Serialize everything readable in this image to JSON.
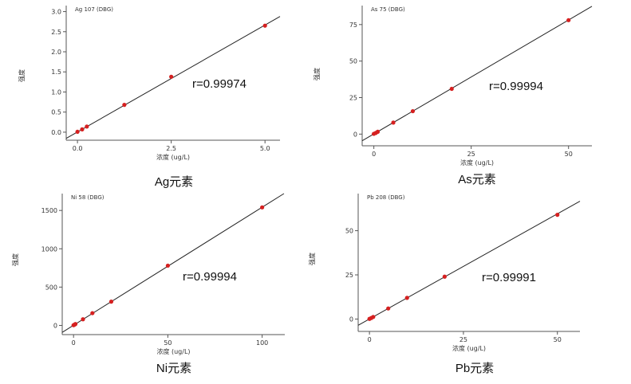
{
  "chart_data": [
    {
      "type": "scatter",
      "title": "Ag 107 (DBG)",
      "xlabel": "浓度 (ug/L)",
      "ylabel": "强度",
      "caption": "Ag元素",
      "r_text": "r=0.99974",
      "xlim": [
        -0.3,
        5.4
      ],
      "ylim": [
        -0.2,
        3.15
      ],
      "xticks": [
        0.0,
        2.5,
        5.0
      ],
      "xtick_labels": [
        "0.0",
        "2.5",
        "5.0"
      ],
      "yticks": [
        0.0,
        0.5,
        1.0,
        1.5,
        2.0,
        2.5,
        3.0
      ],
      "ytick_labels": [
        "0.0",
        "0.5",
        "1.0",
        "1.5",
        "2.0",
        "2.5",
        "3.0"
      ],
      "points": {
        "x": [
          0,
          0.125,
          0.25,
          1.25,
          2.5,
          5.0
        ],
        "y": [
          0.01,
          0.07,
          0.14,
          0.68,
          1.38,
          2.65
        ]
      },
      "fit": {
        "slope": 0.532,
        "intercept": 0.005
      }
    },
    {
      "type": "scatter",
      "title": "As 75 (DBG)",
      "xlabel": "浓度 (ug/L)",
      "ylabel": "强度",
      "caption": "As元素",
      "r_text": "r=0.99994",
      "xlim": [
        -3,
        56
      ],
      "ylim": [
        -8,
        88
      ],
      "xticks": [
        0,
        25,
        50
      ],
      "xtick_labels": [
        "0",
        "25",
        "50"
      ],
      "yticks": [
        0,
        25,
        50,
        75
      ],
      "ytick_labels": [
        "0",
        "25",
        "50",
        "75"
      ],
      "points": {
        "x": [
          0,
          0.5,
          1,
          5,
          10,
          20,
          50
        ],
        "y": [
          0.2,
          0.8,
          1.6,
          7.9,
          15.7,
          31,
          78
        ]
      },
      "fit": {
        "slope": 1.56,
        "intercept": 0.1
      }
    },
    {
      "type": "scatter",
      "title": "Ni 58 (DBG)",
      "xlabel": "浓度 (ug/L)",
      "ylabel": "强度",
      "caption": "Ni元素",
      "r_text": "r=0.99994",
      "xlim": [
        -6,
        112
      ],
      "ylim": [
        -120,
        1720
      ],
      "xticks": [
        0,
        50,
        100
      ],
      "xtick_labels": [
        "0",
        "50",
        "100"
      ],
      "yticks": [
        0,
        500,
        1000,
        1500
      ],
      "ytick_labels": [
        "0",
        "500",
        "1000",
        "1500"
      ],
      "points": {
        "x": [
          0,
          0.5,
          1,
          5,
          10,
          20,
          50,
          100
        ],
        "y": [
          3,
          10,
          18,
          80,
          160,
          310,
          780,
          1540
        ]
      },
      "fit": {
        "slope": 15.4,
        "intercept": 2
      }
    },
    {
      "type": "scatter",
      "title": "Pb 208 (DBG)",
      "xlabel": "浓度 (ug/L)",
      "ylabel": "强度",
      "caption": "Pb元素",
      "r_text": "r=0.99991",
      "xlim": [
        -3,
        56
      ],
      "ylim": [
        -7,
        71
      ],
      "xticks": [
        0,
        25,
        50
      ],
      "xtick_labels": [
        "0",
        "25",
        "50"
      ],
      "yticks": [
        0,
        25,
        50
      ],
      "ytick_labels": [
        "0",
        "25",
        "50"
      ],
      "points": {
        "x": [
          0,
          0.5,
          1,
          5,
          10,
          20,
          50
        ],
        "y": [
          0.1,
          0.6,
          1.2,
          6,
          12,
          24,
          59
        ]
      },
      "fit": {
        "slope": 1.19,
        "intercept": 0.05
      }
    }
  ]
}
